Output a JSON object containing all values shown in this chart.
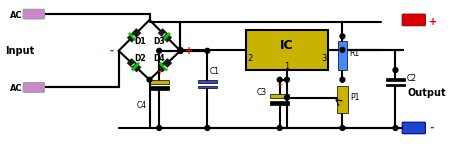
{
  "bg_color": "#ffffff",
  "wire_color": "#000000",
  "diode_body_color": "#1a1a1a",
  "diode_stripe_color": "#00cc00",
  "ic_fill": "#c8b400",
  "ic_border": "#000000",
  "ic_text_color": "#000000",
  "r1_color": "#4488ff",
  "c2_color": "#c8b400",
  "c3_color": "#c8b400",
  "c4_color": "#c8b400",
  "c1_color": "#4444cc",
  "connector_pos_color": "#dd0000",
  "connector_neg_color": "#2244cc",
  "connector_ac_color": "#cc88cc",
  "plus_color": "#dd0000",
  "minus_color": "#2244cc",
  "text_color": "#000000",
  "input_label": "Input",
  "output_label": "Output",
  "ac_label": "AC"
}
